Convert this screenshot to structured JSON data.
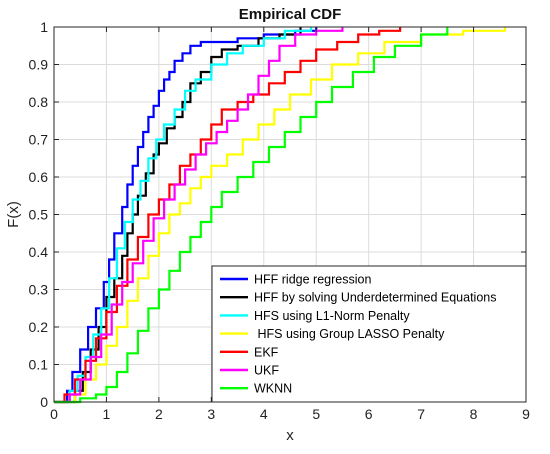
{
  "chart_data": {
    "type": "line",
    "title": "Empirical CDF",
    "xlabel": "x",
    "ylabel": "F(x)",
    "xlim": [
      0,
      9
    ],
    "ylim": [
      0,
      1
    ],
    "xticks": [
      "0",
      "1",
      "2",
      "3",
      "4",
      "5",
      "6",
      "7",
      "8",
      "9"
    ],
    "yticks": [
      "0",
      "0.1",
      "0.2",
      "0.3",
      "0.4",
      "0.5",
      "0.6",
      "0.7",
      "0.8",
      "0.9",
      "1"
    ],
    "grid": true,
    "legend_position": "bottom-right",
    "series": [
      {
        "name": "HFF ridge regression",
        "color": "#0000ff",
        "x": [
          0,
          0.25,
          0.35,
          0.5,
          0.65,
          0.8,
          0.95,
          1.05,
          1.15,
          1.3,
          1.4,
          1.5,
          1.6,
          1.7,
          1.8,
          1.9,
          2.0,
          2.1,
          2.2,
          2.3,
          2.45,
          2.6,
          2.8,
          3.1,
          3.5,
          4.0,
          4.6,
          5.0
        ],
        "y": [
          0,
          0.03,
          0.08,
          0.14,
          0.2,
          0.25,
          0.32,
          0.38,
          0.45,
          0.52,
          0.58,
          0.63,
          0.68,
          0.72,
          0.76,
          0.79,
          0.83,
          0.86,
          0.88,
          0.91,
          0.93,
          0.95,
          0.96,
          0.96,
          0.97,
          0.98,
          0.99,
          1.0
        ]
      },
      {
        "name": "HFF by solving Underdetermined Equations",
        "color": "#000000",
        "x": [
          0,
          0.4,
          0.55,
          0.7,
          0.85,
          1.0,
          1.15,
          1.3,
          1.4,
          1.5,
          1.6,
          1.75,
          1.9,
          2.0,
          2.15,
          2.3,
          2.45,
          2.6,
          2.8,
          3.0,
          3.2,
          3.5,
          3.9,
          4.3,
          4.7
        ],
        "y": [
          0,
          0.03,
          0.08,
          0.14,
          0.2,
          0.28,
          0.33,
          0.39,
          0.45,
          0.5,
          0.55,
          0.61,
          0.66,
          0.69,
          0.73,
          0.76,
          0.8,
          0.85,
          0.88,
          0.92,
          0.94,
          0.95,
          0.97,
          0.98,
          1.0
        ]
      },
      {
        "name": "HFS using L1-Norm Penalty",
        "color": "#00ffff",
        "x": [
          0,
          0.3,
          0.45,
          0.6,
          0.75,
          0.9,
          1.05,
          1.2,
          1.35,
          1.5,
          1.65,
          1.8,
          1.95,
          2.1,
          2.3,
          2.5,
          2.7,
          3.0,
          3.3,
          3.6,
          4.0,
          4.4,
          4.9
        ],
        "y": [
          0,
          0.03,
          0.07,
          0.12,
          0.18,
          0.25,
          0.33,
          0.41,
          0.48,
          0.54,
          0.59,
          0.65,
          0.7,
          0.74,
          0.78,
          0.83,
          0.86,
          0.9,
          0.93,
          0.95,
          0.97,
          0.99,
          1.0
        ]
      },
      {
        "name": " HFS using Group LASSO Penalty",
        "color": "#ffff00",
        "x": [
          0,
          0.4,
          0.6,
          0.8,
          1.0,
          1.2,
          1.4,
          1.6,
          1.8,
          2.0,
          2.2,
          2.4,
          2.6,
          2.8,
          3.0,
          3.3,
          3.6,
          3.9,
          4.2,
          4.5,
          4.9,
          5.3,
          5.8,
          6.3,
          7.0,
          7.8,
          8.6
        ],
        "y": [
          0,
          0.02,
          0.06,
          0.1,
          0.15,
          0.2,
          0.27,
          0.33,
          0.39,
          0.45,
          0.5,
          0.53,
          0.57,
          0.6,
          0.63,
          0.66,
          0.7,
          0.74,
          0.78,
          0.82,
          0.86,
          0.9,
          0.93,
          0.96,
          0.98,
          0.99,
          1.0
        ]
      },
      {
        "name": "EKF",
        "color": "#ff0000",
        "x": [
          0,
          0.2,
          0.4,
          0.6,
          0.8,
          1.0,
          1.2,
          1.4,
          1.6,
          1.8,
          2.0,
          2.2,
          2.4,
          2.6,
          2.8,
          3.0,
          3.2,
          3.5,
          3.8,
          4.1,
          4.4,
          4.7,
          5.0,
          5.4,
          5.8,
          6.2,
          6.6
        ],
        "y": [
          0,
          0.02,
          0.06,
          0.11,
          0.17,
          0.24,
          0.31,
          0.38,
          0.44,
          0.5,
          0.54,
          0.58,
          0.63,
          0.66,
          0.7,
          0.74,
          0.78,
          0.8,
          0.82,
          0.85,
          0.88,
          0.91,
          0.94,
          0.96,
          0.98,
          0.99,
          1.0
        ]
      },
      {
        "name": "UKF",
        "color": "#ff00ff",
        "x": [
          0,
          0.3,
          0.5,
          0.7,
          0.9,
          1.1,
          1.3,
          1.5,
          1.7,
          1.9,
          2.1,
          2.3,
          2.5,
          2.7,
          2.9,
          3.1,
          3.3,
          3.5,
          3.7,
          3.9,
          4.1,
          4.3,
          4.6,
          5.0,
          5.5
        ],
        "y": [
          0,
          0.02,
          0.06,
          0.12,
          0.18,
          0.26,
          0.32,
          0.37,
          0.43,
          0.49,
          0.54,
          0.58,
          0.62,
          0.66,
          0.69,
          0.72,
          0.75,
          0.78,
          0.82,
          0.87,
          0.91,
          0.95,
          0.98,
          0.99,
          1.0
        ]
      },
      {
        "name": "WKNN",
        "color": "#00ff00",
        "x": [
          0,
          0.5,
          0.8,
          1.0,
          1.2,
          1.4,
          1.6,
          1.8,
          2.0,
          2.2,
          2.4,
          2.6,
          2.8,
          3.0,
          3.2,
          3.5,
          3.8,
          4.1,
          4.4,
          4.7,
          5.0,
          5.3,
          5.7,
          6.1,
          6.5,
          7.0,
          7.5
        ],
        "y": [
          0,
          0.01,
          0.02,
          0.04,
          0.08,
          0.13,
          0.19,
          0.25,
          0.3,
          0.35,
          0.4,
          0.44,
          0.48,
          0.52,
          0.56,
          0.6,
          0.64,
          0.68,
          0.72,
          0.76,
          0.8,
          0.84,
          0.88,
          0.92,
          0.95,
          0.98,
          1.0
        ]
      }
    ]
  }
}
